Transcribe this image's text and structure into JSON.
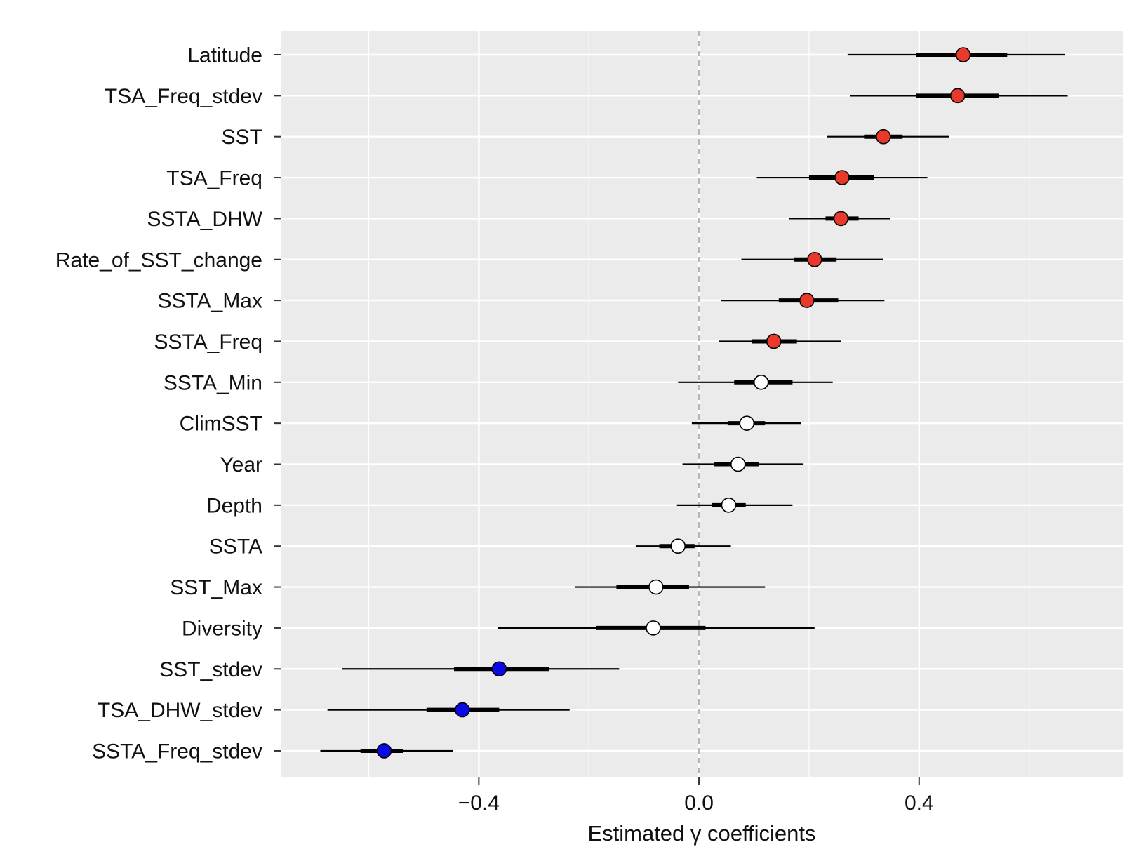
{
  "chart_data": {
    "type": "forest",
    "title": "",
    "xlabel": "Estimated γ coefficients",
    "ylabel": "",
    "xlim": [
      -0.76,
      0.77
    ],
    "x_ticks": [
      -0.4,
      0.0,
      0.4
    ],
    "x_tick_labels": [
      "−0.4",
      "0.0",
      "0.4"
    ],
    "minor_grid_x": [
      -0.6,
      -0.2,
      0.2,
      0.6
    ],
    "reference_line": 0.0,
    "grid": true,
    "legend": "none",
    "colors": {
      "panel_background": "#ebebeb",
      "grid": "#ffffff",
      "reference_line": "#b3b3b3",
      "positive": "#e8392b",
      "negative": "#0a0ae6",
      "neutral": "#ffffff",
      "interval": "#000000"
    },
    "variables": [
      {
        "label": "Latitude",
        "estimate": 0.48,
        "inner": [
          0.395,
          0.56
        ],
        "outer": [
          0.27,
          0.665
        ],
        "effect": "positive"
      },
      {
        "label": "TSA_Freq_stdev",
        "estimate": 0.47,
        "inner": [
          0.395,
          0.545
        ],
        "outer": [
          0.275,
          0.67
        ],
        "effect": "positive"
      },
      {
        "label": "SST",
        "estimate": 0.335,
        "inner": [
          0.3,
          0.37
        ],
        "outer": [
          0.233,
          0.455
        ],
        "effect": "positive"
      },
      {
        "label": "TSA_Freq",
        "estimate": 0.26,
        "inner": [
          0.2,
          0.318
        ],
        "outer": [
          0.105,
          0.415
        ],
        "effect": "positive"
      },
      {
        "label": "SSTA_DHW",
        "estimate": 0.258,
        "inner": [
          0.23,
          0.29
        ],
        "outer": [
          0.163,
          0.347
        ],
        "effect": "positive"
      },
      {
        "label": "Rate_of_SST_change",
        "estimate": 0.21,
        "inner": [
          0.172,
          0.25
        ],
        "outer": [
          0.077,
          0.335
        ],
        "effect": "positive"
      },
      {
        "label": "SSTA_Max",
        "estimate": 0.196,
        "inner": [
          0.145,
          0.253
        ],
        "outer": [
          0.04,
          0.337
        ],
        "effect": "positive"
      },
      {
        "label": "SSTA_Freq",
        "estimate": 0.136,
        "inner": [
          0.096,
          0.178
        ],
        "outer": [
          0.036,
          0.258
        ],
        "effect": "positive"
      },
      {
        "label": "SSTA_Min",
        "estimate": 0.113,
        "inner": [
          0.064,
          0.17
        ],
        "outer": [
          -0.038,
          0.243
        ],
        "effect": "neutral"
      },
      {
        "label": "ClimSST",
        "estimate": 0.087,
        "inner": [
          0.052,
          0.12
        ],
        "outer": [
          -0.013,
          0.186
        ],
        "effect": "neutral"
      },
      {
        "label": "Year",
        "estimate": 0.071,
        "inner": [
          0.028,
          0.109
        ],
        "outer": [
          -0.03,
          0.19
        ],
        "effect": "neutral"
      },
      {
        "label": "Depth",
        "estimate": 0.054,
        "inner": [
          0.023,
          0.085
        ],
        "outer": [
          -0.04,
          0.17
        ],
        "effect": "neutral"
      },
      {
        "label": "SSTA",
        "estimate": -0.038,
        "inner": [
          -0.072,
          -0.008
        ],
        "outer": [
          -0.115,
          0.058
        ],
        "effect": "neutral"
      },
      {
        "label": "SST_Max",
        "estimate": -0.078,
        "inner": [
          -0.15,
          -0.018
        ],
        "outer": [
          -0.225,
          0.12
        ],
        "effect": "neutral"
      },
      {
        "label": "Diversity",
        "estimate": -0.083,
        "inner": [
          -0.187,
          0.012
        ],
        "outer": [
          -0.365,
          0.21
        ],
        "effect": "neutral"
      },
      {
        "label": "SST_stdev",
        "estimate": -0.363,
        "inner": [
          -0.445,
          -0.272
        ],
        "outer": [
          -0.648,
          -0.145
        ],
        "effect": "negative"
      },
      {
        "label": "TSA_DHW_stdev",
        "estimate": -0.43,
        "inner": [
          -0.495,
          -0.363
        ],
        "outer": [
          -0.675,
          -0.235
        ],
        "effect": "negative"
      },
      {
        "label": "SSTA_Freq_stdev",
        "estimate": -0.572,
        "inner": [
          -0.615,
          -0.538
        ],
        "outer": [
          -0.688,
          -0.447
        ],
        "effect": "negative"
      }
    ]
  }
}
